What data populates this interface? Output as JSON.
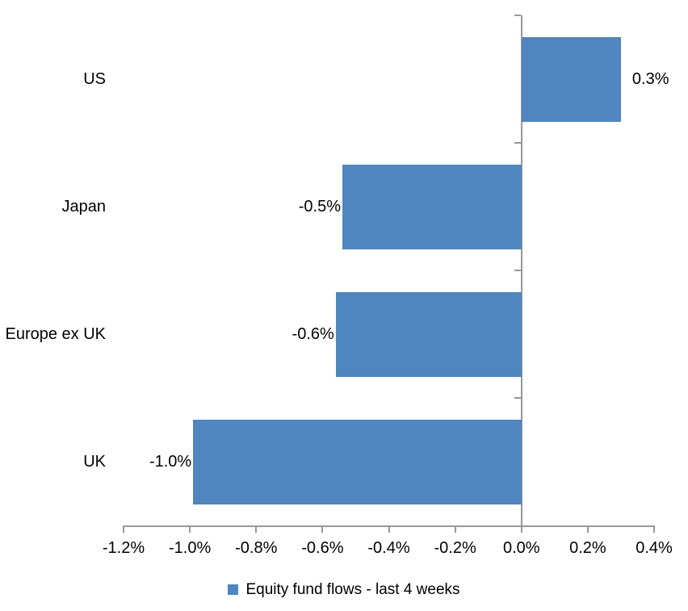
{
  "chart_data": {
    "type": "bar",
    "orientation": "horizontal",
    "title": "",
    "xlabel": "",
    "ylabel": "",
    "categories": [
      "US",
      "Japan",
      "Europe ex UK",
      "UK"
    ],
    "values": [
      0.3,
      -0.5,
      -0.6,
      -1.0
    ],
    "value_labels": [
      "0.3%",
      "-0.5%",
      "-0.6%",
      "-1.0%"
    ],
    "plotted_values": [
      0.3,
      -0.54,
      -0.56,
      -0.99
    ],
    "x_tick_labels": [
      "-1.2%",
      "-1.0%",
      "-0.8%",
      "-0.6%",
      "-0.4%",
      "-0.2%",
      "0.0%",
      "0.2%",
      "0.4%"
    ],
    "x_tick_values": [
      -1.2,
      -1.0,
      -0.8,
      -0.6,
      -0.4,
      -0.2,
      0.0,
      0.2,
      0.4
    ],
    "xlim": [
      -1.2,
      0.4
    ],
    "grid": false,
    "legend": "Equity fund flows - last 4 weeks",
    "legend_position": "bottom",
    "bar_color": "#4E86BD",
    "axis_color": "#989898",
    "label_color": "#000000"
  }
}
